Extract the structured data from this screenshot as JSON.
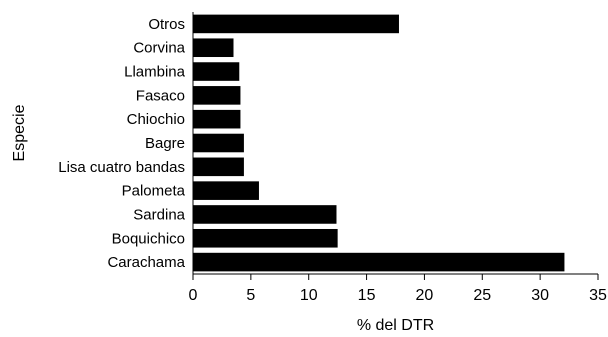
{
  "chart_data": {
    "type": "bar",
    "orientation": "horizontal",
    "title": "",
    "xlabel": "% del DTR",
    "ylabel": "Especie",
    "xlim": [
      0,
      35
    ],
    "xticks": [
      "0",
      "5",
      "10",
      "15",
      "20",
      "25",
      "30",
      "35"
    ],
    "grid": false,
    "legend": "none",
    "bar_color": "#000000",
    "categories": [
      "Otros",
      "Corvina",
      "Llambina",
      "Fasaco",
      "Chiochio",
      "Bagre",
      "Lisa cuatro bandas",
      "Palometa",
      "Sardina",
      "Boquichico",
      "Carachama"
    ],
    "values": [
      17.8,
      3.5,
      4.0,
      4.1,
      4.1,
      4.4,
      4.4,
      5.7,
      12.4,
      12.5,
      32.1
    ]
  }
}
